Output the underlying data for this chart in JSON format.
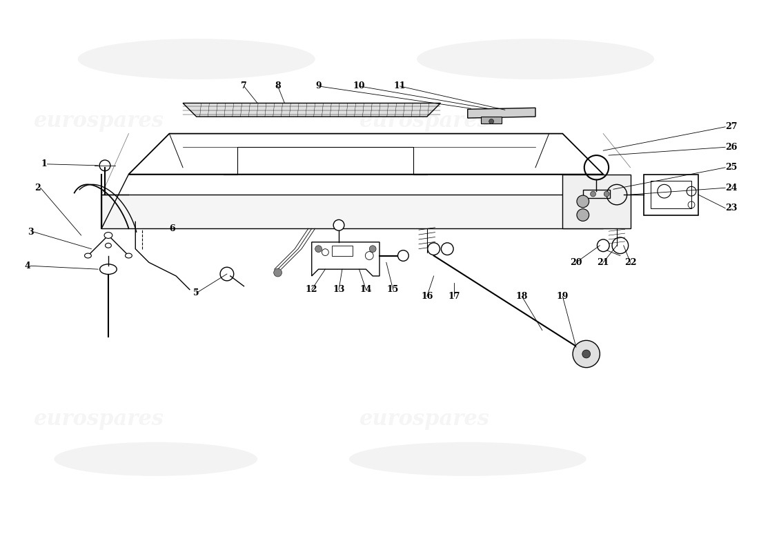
{
  "fig_width": 11.0,
  "fig_height": 8.0,
  "dpi": 100,
  "bg": "#ffffff",
  "lc": "#000000",
  "wm_color": "#cccccc",
  "wm_alpha": 0.18,
  "wm_text": "eurospares",
  "fs_part": 9,
  "xlim": [
    0,
    110
  ],
  "ylim": [
    0,
    80
  ]
}
